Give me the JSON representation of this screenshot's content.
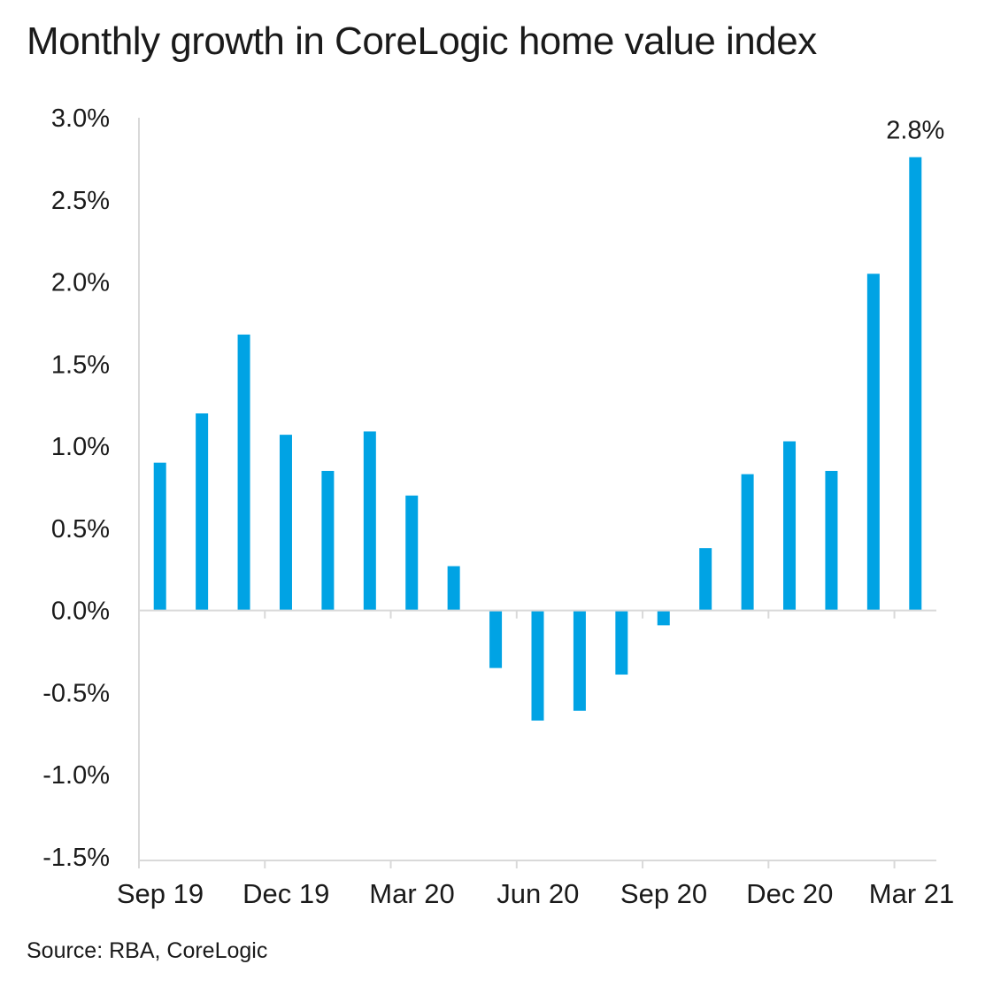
{
  "chart_data": {
    "type": "bar",
    "title": "Monthly growth in CoreLogic home value index",
    "xlabel": "",
    "ylabel": "",
    "ylim": [
      -1.5,
      3.0
    ],
    "yticks": [
      "-1.5%",
      "-1.0%",
      "-0.5%",
      "0.0%",
      "0.5%",
      "1.0%",
      "1.5%",
      "2.0%",
      "2.5%",
      "3.0%"
    ],
    "ytick_values": [
      -1.5,
      -1.0,
      -0.5,
      0.0,
      0.5,
      1.0,
      1.5,
      2.0,
      2.5,
      3.0
    ],
    "x_tick_labels": [
      "Sep 19",
      "Dec 19",
      "Mar 20",
      "Jun 20",
      "Sep 20",
      "Dec 20",
      "Mar 21"
    ],
    "categories": [
      "Sep 19",
      "Oct 19",
      "Nov 19",
      "Dec 19",
      "Jan 20",
      "Feb 20",
      "Mar 20",
      "Apr 20",
      "May 20",
      "Jun 20",
      "Jul 20",
      "Aug 20",
      "Sep 20",
      "Oct 20",
      "Nov 20",
      "Dec 20",
      "Jan 21",
      "Feb 21",
      "Mar 21"
    ],
    "values": [
      0.9,
      1.2,
      1.68,
      1.07,
      0.85,
      1.09,
      0.7,
      0.27,
      -0.35,
      -0.67,
      -0.61,
      -0.39,
      -0.09,
      0.38,
      0.83,
      1.03,
      0.85,
      2.05,
      2.76
    ],
    "data_labels": [
      {
        "category": "Mar 21",
        "text": "2.8%"
      }
    ],
    "grid": false,
    "legend": "none",
    "bar_color": "#00A3E4",
    "axis_color": "#d9d9d9"
  },
  "source": "Source: RBA, CoreLogic"
}
